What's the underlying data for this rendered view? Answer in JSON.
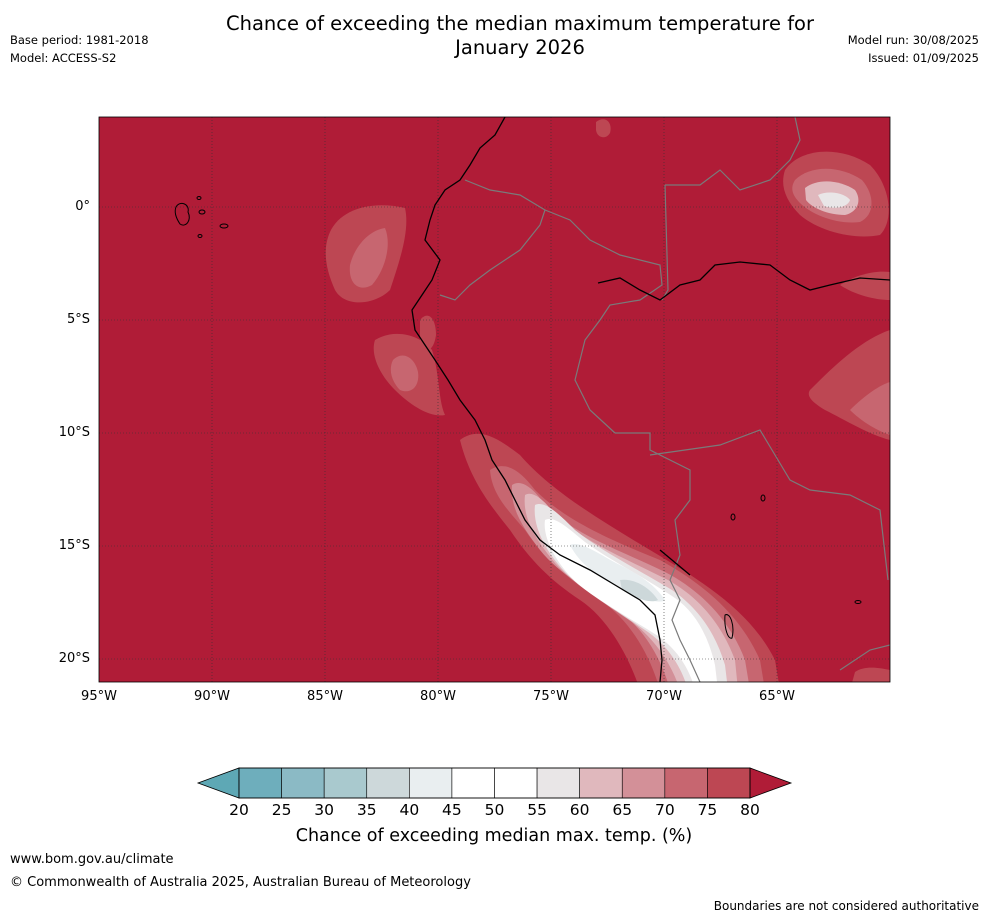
{
  "title": {
    "line1": "Chance of exceeding the median maximum temperature for",
    "line2": "January 2026"
  },
  "meta_left": {
    "base_period": "Base period: 1981-2018",
    "model": "Model: ACCESS-S2"
  },
  "meta_right": {
    "model_run": "Model run: 30/08/2025",
    "issued": "Issued: 01/09/2025"
  },
  "map": {
    "lat_labels": [
      "0°",
      "5°S",
      "10°S",
      "15°S",
      "20°S"
    ],
    "lon_labels": [
      "95°W",
      "90°W",
      "85°W",
      "80°W",
      "75°W",
      "70°W",
      "65°W"
    ],
    "background_color": "#b01c37"
  },
  "colorbar": {
    "ticks": [
      "20",
      "25",
      "30",
      "35",
      "40",
      "45",
      "50",
      "55",
      "60",
      "65",
      "70",
      "75",
      "80"
    ],
    "colors": [
      "#5ea8b5",
      "#6eaebc",
      "#8bbac5",
      "#a9c9ce",
      "#cdd8da",
      "#e9eef0",
      "#ffffff",
      "#ffffff",
      "#e9e6e7",
      "#e0b8bd",
      "#d39098",
      "#c76670",
      "#bd4753",
      "#b01c37"
    ],
    "title": "Chance of exceeding median max. temp. (%)"
  },
  "footer": {
    "url": "www.bom.gov.au/climate",
    "copyright": "© Commonwealth of Australia 2025, Australian Bureau of Meteorology",
    "disclaimer": "Boundaries are not considered authoritative"
  }
}
